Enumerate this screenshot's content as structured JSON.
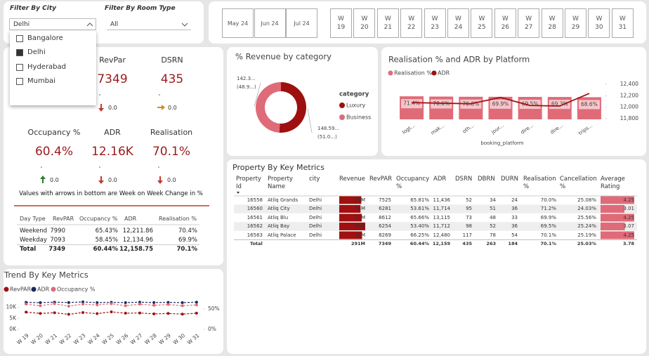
{
  "filters": {
    "city": {
      "label": "Filter By City",
      "selected": "Delhi",
      "options": [
        "Bangalore",
        "Delhi",
        "Hyderabad",
        "Mumbai"
      ],
      "checked": 1
    },
    "room_type": {
      "label": "Filter By Room Type",
      "selected": "All"
    }
  },
  "date_slicer": {
    "months": [
      "May 24",
      "Jun 24",
      "Jul 24"
    ],
    "weeks": [
      "W 19",
      "W 20",
      "W 21",
      "W 22",
      "W 23",
      "W 24",
      "W 25",
      "W 26",
      "W 27",
      "W 28",
      "W 29",
      "W 30",
      "W 31"
    ]
  },
  "kpis": [
    {
      "label": "RevPar",
      "value": "7349",
      "change": "0.0",
      "trend": "down"
    },
    {
      "label": "DSRN",
      "value": "435",
      "change": "0.0",
      "trend": "flat"
    },
    {
      "label": "Occupancy %",
      "value": "60.4%",
      "change": "0.0",
      "trend": "up"
    },
    {
      "label": "ADR",
      "value": "12.16K",
      "change": "0.0",
      "trend": "down"
    },
    {
      "label": "Realisation",
      "value": "70.1%",
      "change": "0.0",
      "trend": "down"
    }
  ],
  "kpi_note": "Values with arrows in bottom are Week on Week Change in %",
  "day_type_table": {
    "columns": [
      "Day Type",
      "RevPAR",
      "Occupancy %",
      "ADR",
      "Realisation %"
    ],
    "rows": [
      [
        "Weekend",
        "7990",
        "65.43%",
        "12,211.86",
        "70.4%"
      ],
      [
        "Weekday",
        "7093",
        "58.45%",
        "12,134.96",
        "69.9%"
      ],
      [
        "Total",
        "7349",
        "60.44%",
        "12,158.75",
        "70.1%"
      ]
    ]
  },
  "property_table": {
    "title": "Property By Key Metrics",
    "columns": [
      "Property Id",
      "Property Name",
      "city",
      "Revenue",
      "RevPAR",
      "Occupancy %",
      "ADR",
      "DSRN",
      "DBRN",
      "DURN",
      "Realisation %",
      "Cancellation %",
      "Average Rating"
    ],
    "rows": [
      [
        "16558",
        "Atliq Grands",
        "Delhi",
        {
          "value": 56000000,
          "label": "56M"
        },
        "7525",
        "65.81%",
        "11,436",
        "52",
        "34",
        "24",
        "70.0%",
        "25.08%",
        4.25
      ],
      [
        "16560",
        "Atliq City",
        "Delhi",
        {
          "value": 54000000,
          "label": "54M"
        },
        "6281",
        "53.61%",
        "11,714",
        "95",
        "51",
        "36",
        "71.2%",
        "24.03%",
        3.01
      ],
      [
        "16561",
        "Atliq Blu",
        "Delhi",
        {
          "value": 57000000,
          "label": "57M"
        },
        "8612",
        "65.66%",
        "13,115",
        "73",
        "48",
        "33",
        "69.9%",
        "25.56%",
        4.25
      ],
      [
        "16562",
        "Atliq Bay",
        "Delhi",
        {
          "value": 66000000,
          "label": "66M"
        },
        "6254",
        "53.40%",
        "11,712",
        "98",
        "52",
        "36",
        "69.5%",
        "25.24%",
        3.07
      ],
      [
        "16563",
        "Atliq Palace",
        "Delhi",
        {
          "value": 58000000,
          "label": "58M"
        },
        "8269",
        "66.25%",
        "12,480",
        "117",
        "78",
        "54",
        "70.1%",
        "25.19%",
        4.25
      ]
    ],
    "total": {
      "label": "Total",
      "values": [
        "291M",
        "7349",
        "60.44%",
        "12,159",
        "435",
        "263",
        "184",
        "70.1%",
        "25.03%",
        "3.78"
      ]
    }
  },
  "chart_data": [
    {
      "type": "donut",
      "title": "% Revenue by category",
      "legend_title": "category",
      "categories": [
        "Luxury",
        "Business"
      ],
      "colors": [
        "#9e1010",
        "#e06b78"
      ],
      "values": [
        148.59,
        142.3
      ],
      "value_labels": [
        "148.59...",
        "142.3..."
      ],
      "percent_labels": [
        "(51.0...)",
        "(48.9...)"
      ]
    },
    {
      "type": "combo",
      "title": "Realisation % and ADR by Platform",
      "x_label": "booking_platform",
      "categories": [
        "logt...",
        "mak...",
        "oth...",
        "jour...",
        "dire...",
        "dire...",
        "trips..."
      ],
      "series": [
        {
          "name": "Realisation %",
          "color": "#e06b78",
          "values": [
            71.4,
            70.6,
            70.0,
            69.9,
            69.5,
            69.3,
            68.6
          ],
          "value_labels": [
            "71.4%",
            "70.6%",
            "70.0%",
            "69.9%",
            "69.5%",
            "69.3%",
            "68.6%"
          ]
        },
        {
          "name": "ADR",
          "color": "#a01010",
          "axis": "y2",
          "values": [
            12080,
            12070,
            12060,
            12170,
            12030,
            12020,
            12240
          ]
        }
      ],
      "ylim": [
        0,
        100
      ],
      "y2lim": [
        11800,
        12400
      ],
      "y2ticks": [
        {
          "value": 11800,
          "label": "11,800"
        },
        {
          "value": 12000,
          "label": "12,000"
        },
        {
          "value": 12200,
          "label": "12,200"
        },
        {
          "value": 12400,
          "label": "12,400"
        }
      ]
    },
    {
      "type": "line",
      "title": "Trend By Key Metrics",
      "categories": [
        "W 19",
        "W 20",
        "W 21",
        "W 22",
        "W 23",
        "W 24",
        "W 25",
        "W 26",
        "W 27",
        "W 28",
        "W 29",
        "W 30",
        "W 31"
      ],
      "series": [
        {
          "name": "RevPAR",
          "color": "#a01010",
          "values": [
            7800,
            7200,
            7500,
            6800,
            7600,
            7100,
            7900,
            7300,
            7400,
            7000,
            7200,
            6900,
            7300
          ]
        },
        {
          "name": "ADR",
          "color": "#1b2a5e",
          "values": [
            12200,
            12100,
            12300,
            12150,
            12400,
            12100,
            12250,
            12100,
            12300,
            12150,
            12200,
            12100,
            12300
          ]
        },
        {
          "name": "Occupancy %",
          "color": "#e06b78",
          "axis": "y2",
          "values": [
            62,
            58,
            63,
            57,
            62,
            60,
            63,
            58,
            62,
            59,
            61,
            58,
            60
          ]
        }
      ],
      "ylim": [
        0,
        14000
      ],
      "yticks": [
        {
          "value": 0,
          "label": "0K"
        },
        {
          "value": 5000,
          "label": "5K"
        },
        {
          "value": 10000,
          "label": "10K"
        }
      ],
      "y2lim": [
        0,
        76
      ],
      "y2ticks": [
        {
          "value": 0,
          "label": "0%"
        },
        {
          "value": 50,
          "label": "50%"
        }
      ]
    }
  ]
}
